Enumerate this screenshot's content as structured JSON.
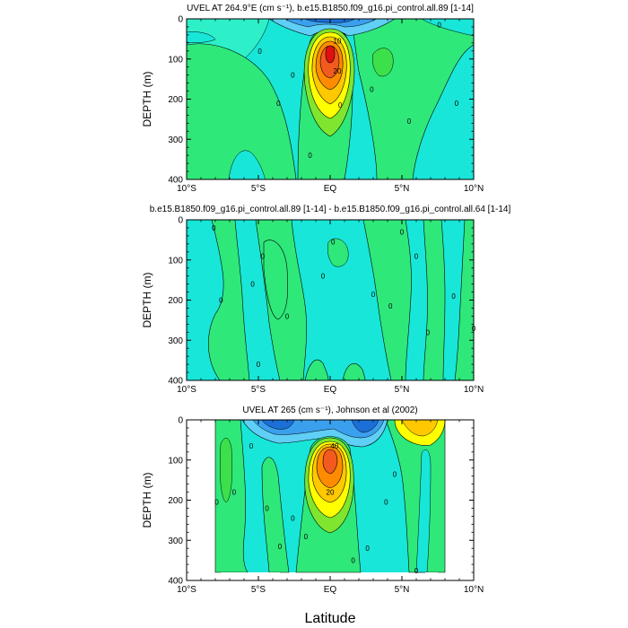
{
  "figure": {
    "x_axis_title": "Latitude"
  },
  "palette": {
    "deep_blue": "#1b6fd6",
    "mid_blue": "#3aa0ee",
    "light_blue": "#5fcff5",
    "cyan": "#18e6d8",
    "aqua": "#2df0c8",
    "green": "#2fe87a",
    "bright_green": "#3ce04a",
    "lime": "#7fe52e",
    "yellow": "#ffff00",
    "gold": "#ffc800",
    "orange": "#ff8c00",
    "red_orange": "#f25a1e",
    "red": "#e01010",
    "white_gap": "#ffffff",
    "contour_line": "#000000"
  },
  "chart_data": [
    {
      "type": "heatmap",
      "id": "model",
      "title": "UVEL AT 264.9°E (cm s⁻¹), b.e15.B1850.f09_g16.pi_control.all.89 [1-14]",
      "xlabel": "",
      "ylabel": "DEPTH (m)",
      "xlim": [
        -10,
        10
      ],
      "ylim": [
        400,
        0
      ],
      "x_ticks": [
        -10,
        -5,
        0,
        5,
        10
      ],
      "x_tick_labels": [
        "10°S",
        "5°S",
        "EQ",
        "5°N",
        "10°N"
      ],
      "y_ticks": [
        0,
        100,
        200,
        300,
        400
      ],
      "y_tick_labels": [
        "0",
        "100",
        "200",
        "300",
        "400"
      ],
      "contour_labels": [
        {
          "text": "10",
          "x": 0.5,
          "depth": 55
        },
        {
          "text": "20",
          "x": 0.5,
          "depth": 130
        },
        {
          "text": "0",
          "x": -4.9,
          "depth": 80
        },
        {
          "text": "0",
          "x": -2.6,
          "depth": 140
        },
        {
          "text": "0",
          "x": -3.6,
          "depth": 210
        },
        {
          "text": "0",
          "x": -1.4,
          "depth": 340
        },
        {
          "text": "0",
          "x": 0.7,
          "depth": 215
        },
        {
          "text": "0",
          "x": 2.9,
          "depth": 175
        },
        {
          "text": "0",
          "x": 5.5,
          "depth": 255
        },
        {
          "text": "0",
          "x": 7.6,
          "depth": 15
        },
        {
          "text": "0",
          "x": 8.8,
          "depth": 210
        }
      ]
    },
    {
      "type": "heatmap",
      "id": "difference",
      "title": "b.e15.B1850.f09_g16.pi_control.all.89 [1-14] - b.e15.B1850.f09_g16.pi_control.all.64 [1-14]",
      "xlabel": "",
      "ylabel": "DEPTH (m)",
      "xlim": [
        -10,
        10
      ],
      "ylim": [
        400,
        0
      ],
      "x_ticks": [
        -10,
        -5,
        0,
        5,
        10
      ],
      "x_tick_labels": [
        "10°S",
        "5°S",
        "EQ",
        "5°N",
        "10°N"
      ],
      "y_ticks": [
        0,
        100,
        200,
        300,
        400
      ],
      "y_tick_labels": [
        "0",
        "100",
        "200",
        "300",
        "400"
      ],
      "contour_labels": [
        {
          "text": "0",
          "x": -8.1,
          "depth": 20
        },
        {
          "text": "0",
          "x": -7.6,
          "depth": 200
        },
        {
          "text": "0",
          "x": -4.7,
          "depth": 90
        },
        {
          "text": "0",
          "x": -5.0,
          "depth": 360
        },
        {
          "text": "0",
          "x": -5.4,
          "depth": 160
        },
        {
          "text": "0",
          "x": -3.0,
          "depth": 240
        },
        {
          "text": "0",
          "x": -0.5,
          "depth": 140
        },
        {
          "text": "0",
          "x": 0.2,
          "depth": 55
        },
        {
          "text": "0",
          "x": 3.0,
          "depth": 185
        },
        {
          "text": "0",
          "x": 4.2,
          "depth": 215
        },
        {
          "text": "0",
          "x": 5.0,
          "depth": 30
        },
        {
          "text": "0",
          "x": 6.0,
          "depth": 90
        },
        {
          "text": "0",
          "x": 6.8,
          "depth": 280
        },
        {
          "text": "0",
          "x": 8.6,
          "depth": 190
        },
        {
          "text": "0",
          "x": 10.0,
          "depth": 270
        }
      ]
    },
    {
      "type": "heatmap",
      "id": "observations",
      "title": "UVEL AT 265 (cm s⁻¹), Johnson et al (2002)",
      "xlabel": "Latitude",
      "ylabel": "DEPTH (m)",
      "xlim": [
        -10,
        10
      ],
      "ylim": [
        400,
        0
      ],
      "x_ticks": [
        -10,
        -5,
        0,
        5,
        10
      ],
      "x_tick_labels": [
        "10°S",
        "5°S",
        "EQ",
        "5°N",
        "10°N"
      ],
      "y_ticks": [
        0,
        100,
        200,
        300,
        400
      ],
      "y_tick_labels": [
        "0",
        "100",
        "200",
        "300",
        "400"
      ],
      "data_extent_lat": [
        -8,
        8
      ],
      "contour_labels": [
        {
          "text": "0",
          "x": -5.5,
          "depth": 65
        },
        {
          "text": "40",
          "x": 0.3,
          "depth": 65
        },
        {
          "text": "20",
          "x": 0.0,
          "depth": 180
        },
        {
          "text": "0",
          "x": -6.7,
          "depth": 180
        },
        {
          "text": "0",
          "x": -7.9,
          "depth": 205
        },
        {
          "text": "0",
          "x": -4.4,
          "depth": 220
        },
        {
          "text": "0",
          "x": -2.6,
          "depth": 245
        },
        {
          "text": "0",
          "x": -1.7,
          "depth": 290
        },
        {
          "text": "0",
          "x": -3.5,
          "depth": 315
        },
        {
          "text": "0",
          "x": 3.9,
          "depth": 205
        },
        {
          "text": "0",
          "x": 2.6,
          "depth": 320
        },
        {
          "text": "0",
          "x": 1.6,
          "depth": 350
        },
        {
          "text": "0",
          "x": 4.5,
          "depth": 135
        },
        {
          "text": "0",
          "x": 6.0,
          "depth": 375
        }
      ]
    }
  ]
}
